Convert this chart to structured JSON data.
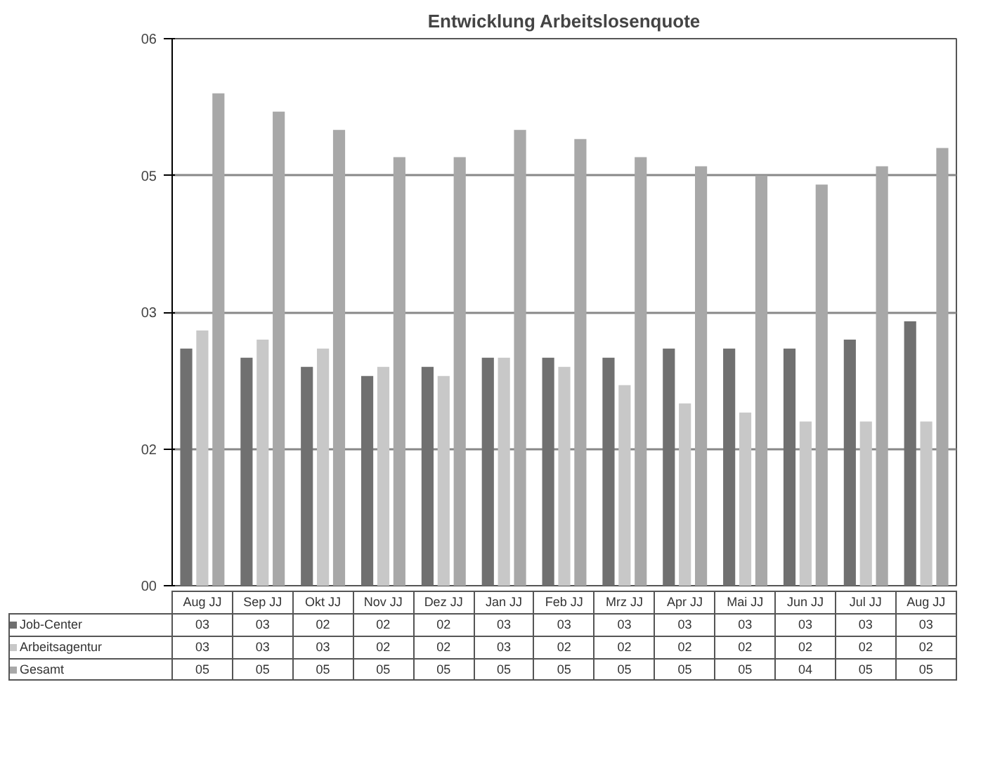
{
  "chart_data": {
    "type": "bar",
    "title": "Entwicklung Arbeitslosenquote",
    "categories": [
      "Aug JJ",
      "Sep JJ",
      "Okt JJ",
      "Nov JJ",
      "Dez JJ",
      "Jan JJ",
      "Feb JJ",
      "Mrz JJ",
      "Apr JJ",
      "Mai JJ",
      "Jun JJ",
      "Jul JJ",
      "Aug JJ"
    ],
    "series": [
      {
        "name": "Job-Center",
        "color": "#707070",
        "values": [
          2.6,
          2.5,
          2.4,
          2.3,
          2.4,
          2.5,
          2.5,
          2.5,
          2.6,
          2.6,
          2.6,
          2.7,
          2.9
        ],
        "value_labels": [
          "03",
          "03",
          "02",
          "02",
          "02",
          "03",
          "03",
          "03",
          "03",
          "03",
          "03",
          "03",
          "03"
        ]
      },
      {
        "name": "Arbeitsagentur",
        "color": "#c8c8c8",
        "values": [
          2.8,
          2.7,
          2.6,
          2.4,
          2.3,
          2.5,
          2.4,
          2.2,
          2.0,
          1.9,
          1.8,
          1.8,
          1.8
        ],
        "value_labels": [
          "03",
          "03",
          "03",
          "02",
          "02",
          "03",
          "02",
          "02",
          "02",
          "02",
          "02",
          "02",
          "02"
        ]
      },
      {
        "name": "Gesamt",
        "color": "#a8a8a8",
        "values": [
          5.4,
          5.2,
          5.0,
          4.7,
          4.7,
          5.0,
          4.9,
          4.7,
          4.6,
          4.5,
          4.4,
          4.6,
          4.8
        ],
        "value_labels": [
          "05",
          "05",
          "05",
          "05",
          "05",
          "05",
          "05",
          "05",
          "05",
          "05",
          "04",
          "05",
          "05"
        ]
      }
    ],
    "ylim": [
      0,
      6
    ],
    "yticks": [
      {
        "value": 0,
        "label": "00"
      },
      {
        "value": 1.5,
        "label": "02"
      },
      {
        "value": 3,
        "label": "03"
      },
      {
        "value": 4.5,
        "label": "05"
      },
      {
        "value": 6,
        "label": "06"
      }
    ],
    "grid": "y",
    "legend": "bottom"
  }
}
